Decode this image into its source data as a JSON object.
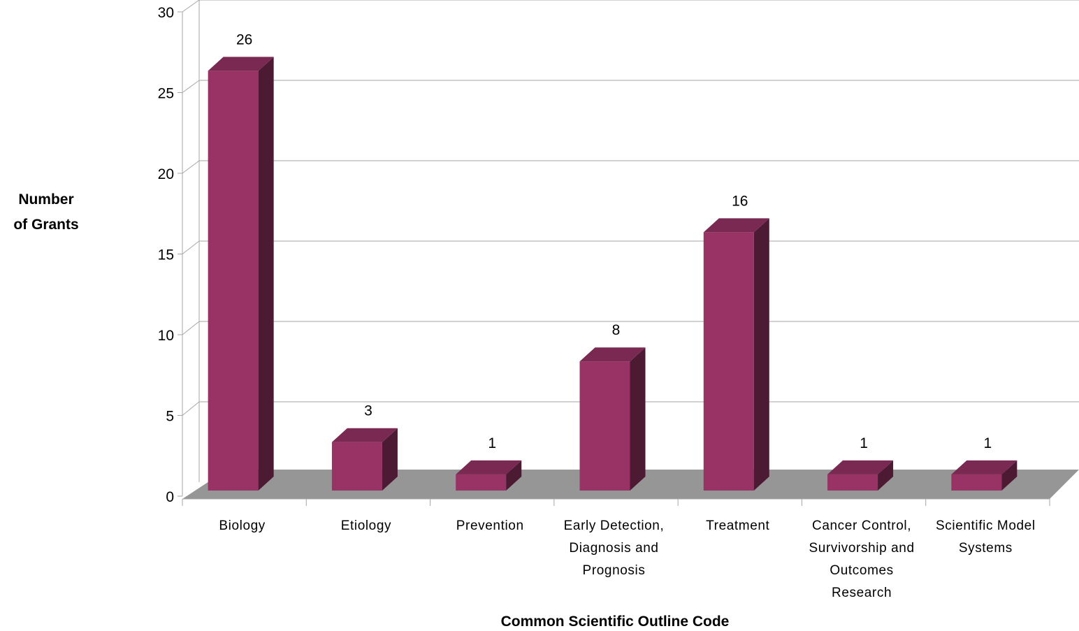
{
  "chart_data": {
    "type": "bar",
    "style": "3d-column",
    "title": "",
    "xlabel": "Common Scientific Outline Code",
    "ylabel_lines": [
      "Number",
      "of Grants"
    ],
    "categories": [
      [
        "Biology"
      ],
      [
        "Etiology"
      ],
      [
        "Prevention"
      ],
      [
        "Early Detection,",
        "Diagnosis and",
        "Prognosis"
      ],
      [
        "Treatment"
      ],
      [
        "Cancer Control,",
        "Survivorship and",
        "Outcomes",
        "Research"
      ],
      [
        "Scientific Model",
        "Systems"
      ]
    ],
    "values": [
      26,
      3,
      1,
      8,
      16,
      1,
      1
    ],
    "data_labels": [
      "26",
      "3",
      "1",
      "8",
      "16",
      "1",
      "1"
    ],
    "ylim": [
      0,
      30
    ],
    "yticks": [
      0,
      5,
      10,
      15,
      20,
      25,
      30
    ],
    "grid": true,
    "legend": "none",
    "colors": {
      "bar_front": "#993366",
      "bar_side": "#4d1a33",
      "bar_top": "#7a2952",
      "floor": "#969696",
      "grid": "#a6a6a6",
      "axis": "#a6a6a6"
    }
  }
}
